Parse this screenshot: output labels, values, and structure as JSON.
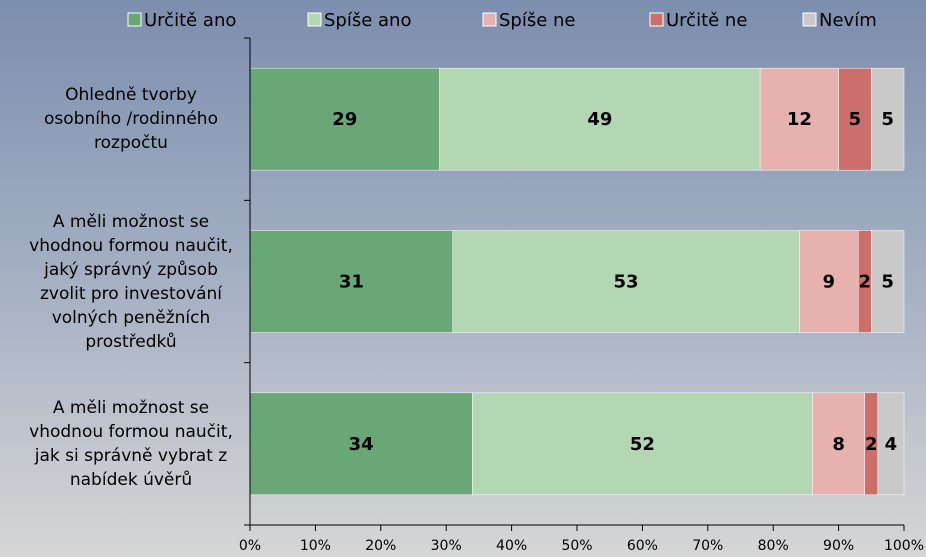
{
  "chart_data": {
    "type": "stacked-bar-horizontal",
    "categories": [
      "Ohledně tvorby osobního /rodinného rozpočtu",
      "A měli možnost se vhodnou formou naučit, jaký správný způsob zvolit pro investování volných peněžních prostředků",
      "A měli možnost se vhodnou formou naučit, jak si správně vybrat z nabídek úvěrů"
    ],
    "series": [
      {
        "name": "Určitě ano",
        "color": "#69a776",
        "values": [
          29,
          31,
          34
        ]
      },
      {
        "name": "Spíše ano",
        "color": "#b2d7b2",
        "values": [
          49,
          53,
          52
        ]
      },
      {
        "name": "Spíše ne",
        "color": "#e7b1ad",
        "values": [
          12,
          9,
          8
        ]
      },
      {
        "name": "Určitě ne",
        "color": "#cc6f6b",
        "values": [
          5,
          2,
          2
        ]
      },
      {
        "name": "Nevím",
        "color": "#c9c9c9",
        "values": [
          5,
          5,
          4
        ]
      }
    ],
    "xlim": [
      0,
      100
    ],
    "xticks": [
      {
        "value": 0,
        "label": "0%"
      },
      {
        "value": 10,
        "label": "10%"
      },
      {
        "value": 20,
        "label": "20%"
      },
      {
        "value": 30,
        "label": "30%"
      },
      {
        "value": 40,
        "label": "40%"
      },
      {
        "value": 50,
        "label": "50%"
      },
      {
        "value": 60,
        "label": "60%"
      },
      {
        "value": 70,
        "label": "70%"
      },
      {
        "value": 80,
        "label": "80%"
      },
      {
        "value": 90,
        "label": "90%"
      },
      {
        "value": 100,
        "label": "100%"
      }
    ],
    "legend": "top"
  }
}
